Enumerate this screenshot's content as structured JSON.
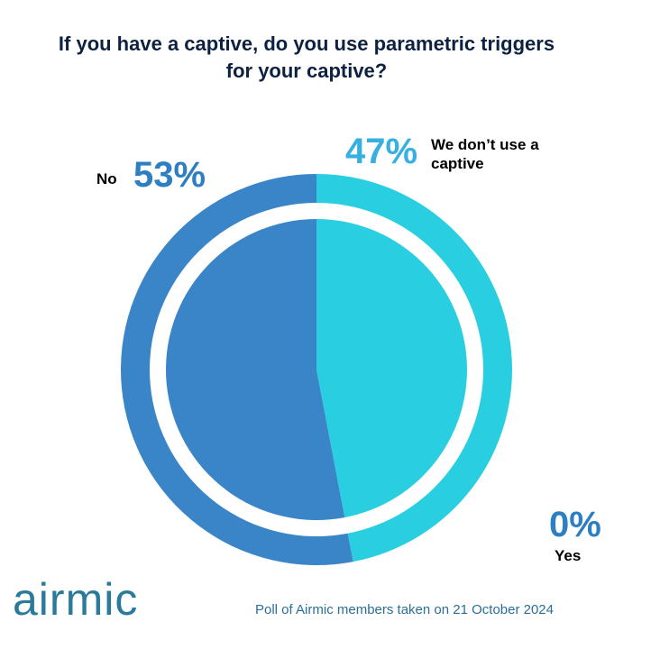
{
  "chart_data": {
    "type": "donut",
    "title": "If you have a captive, do you use parametric triggers for your captive?",
    "categories": [
      "We don’t use a captive",
      "No",
      "Yes"
    ],
    "values": [
      47,
      53,
      0
    ],
    "value_labels": [
      "47%",
      "53%",
      "0%"
    ],
    "colors": [
      "#29cfe0",
      "#3a85c8",
      "#2e7fc2"
    ],
    "label_colors": [
      "#36b0e0",
      "#2e7fc2",
      "#2e7fc2"
    ]
  },
  "logo": "airmic",
  "footnote": "Poll of Airmic members taken on 21 October 2024"
}
